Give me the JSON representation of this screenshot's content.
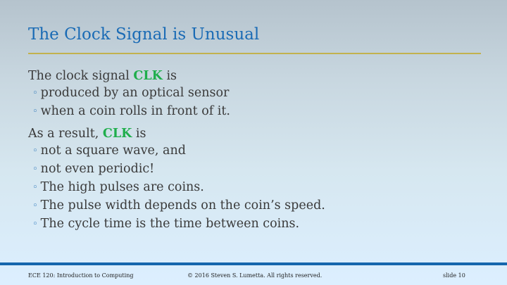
{
  "slide": {
    "title": "The Clock Signal is Unusual"
  },
  "content": {
    "para1": {
      "prefix": "The clock signal ",
      "keyword": "CLK",
      "suffix": " is"
    },
    "list1": [
      "produced by an optical sensor",
      "when a coin rolls in front of it."
    ],
    "para2": {
      "prefix": "As a result, ",
      "keyword": "CLK",
      "suffix": " is"
    },
    "list2": [
      "not a square wave, and",
      "not even periodic!",
      "The high pulses are coins.",
      "The pulse width depends on the coin’s speed.",
      "The cycle time is the time between coins."
    ],
    "bullet_glyph": "◦"
  },
  "footer": {
    "course": "ECE 120: Introduction to Computing",
    "copyright": "© 2016 Steven S. Lumetta.  All rights reserved.",
    "slide_number": "slide 10"
  },
  "colors": {
    "title": "#1a6bb5",
    "keyword": "#1fae4c",
    "rule": "#c2b24d",
    "footer_bar": "#1566ad"
  }
}
